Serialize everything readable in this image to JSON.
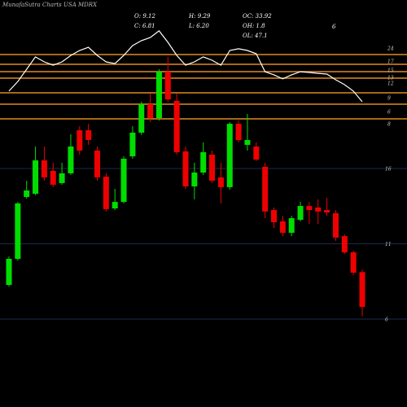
{
  "chart_data": {
    "type": "candlestick",
    "title": "MunafaSutra Charts USA MDRX",
    "stats": [
      "O: 9.12",
      "H: 9.29",
      "OC: 33.92",
      "6",
      "C: 6.81",
      "L: 6.20",
      "OH: 1.8",
      "OL: 47.1"
    ],
    "level_labels": [
      "24",
      "17",
      "15",
      "13",
      "12",
      "9",
      "6",
      "8"
    ],
    "up_color": "#00dd00",
    "down_color": "#ee0000",
    "line_color": "#ffffff",
    "level_color": "#e08a1e",
    "ylim": [
      0.16,
      27.19
    ],
    "yticks": [
      6,
      11,
      16
    ],
    "grid": true,
    "open": [
      8.27,
      10.0,
      14.11,
      14.32,
      16.54,
      15.84,
      15.03,
      15.68,
      18.54,
      18.54,
      17.19,
      15.46,
      13.35,
      13.78,
      16.81,
      18.38,
      20.27,
      19.35,
      22.43,
      20.49,
      17.14,
      14.81,
      15.73,
      16.92,
      15.41,
      14.76,
      18.97,
      17.57,
      17.46,
      16.11,
      13.24,
      12.49,
      11.73,
      12.59,
      13.51,
      13.41,
      13.24,
      13.03,
      11.51,
      10.43,
      9.12
    ],
    "high": [
      10.16,
      13.78,
      15.19,
      17.46,
      17.46,
      16.38,
      16.38,
      18.27,
      18.81,
      18.97,
      17.46,
      15.68,
      14.65,
      16.81,
      18.81,
      20.43,
      20.97,
      22.59,
      23.41,
      20.97,
      17.46,
      16.38,
      17.73,
      17.19,
      16.38,
      19.08,
      19.19,
      19.62,
      17.73,
      16.38,
      13.41,
      12.86,
      12.86,
      13.78,
      13.78,
      13.95,
      14.05,
      13.24,
      11.62,
      10.54,
      9.29
    ],
    "low": [
      8.16,
      9.89,
      14.0,
      14.22,
      15.19,
      14.76,
      14.92,
      15.57,
      16.92,
      17.57,
      15.19,
      13.14,
      13.24,
      13.68,
      16.65,
      18.22,
      19.08,
      19.19,
      20.43,
      16.92,
      14.65,
      13.95,
      15.57,
      15.03,
      13.68,
      14.59,
      17.73,
      17.19,
      16.49,
      12.7,
      12.05,
      11.51,
      11.51,
      12.49,
      12.32,
      12.32,
      12.86,
      11.19,
      10.32,
      8.92,
      6.2
    ],
    "close": [
      10.0,
      13.68,
      14.54,
      16.54,
      15.41,
      14.92,
      15.68,
      17.46,
      17.19,
      17.89,
      15.41,
      13.3,
      13.78,
      16.65,
      18.38,
      20.27,
      19.35,
      22.43,
      20.59,
      17.08,
      14.81,
      15.73,
      17.08,
      15.19,
      14.76,
      18.97,
      17.89,
      17.89,
      16.59,
      13.14,
      12.43,
      11.73,
      12.7,
      13.51,
      13.24,
      13.14,
      13.08,
      11.41,
      10.43,
      9.08,
      6.81
    ],
    "line": [
      21.14,
      21.78,
      22.59,
      23.41,
      23.08,
      22.86,
      23.08,
      23.51,
      23.84,
      24.05,
      23.51,
      23.08,
      22.97,
      23.51,
      24.16,
      24.49,
      24.7,
      25.14,
      24.38,
      23.51,
      22.86,
      23.08,
      23.41,
      23.19,
      22.86,
      23.84,
      23.95,
      23.84,
      23.62,
      22.43,
      22.22,
      21.95,
      22.22,
      22.43,
      22.38,
      22.32,
      22.27,
      21.89,
      21.57,
      21.14,
      20.43
    ]
  }
}
